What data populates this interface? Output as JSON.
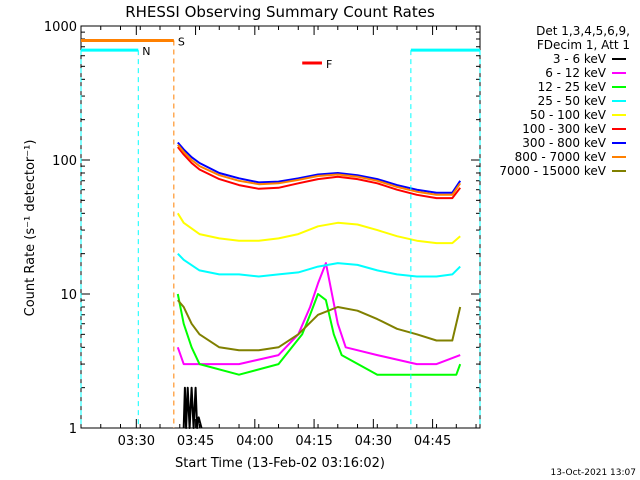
{
  "chart_data": {
    "type": "line",
    "title": "RHESSI Observing Summary Count Rates",
    "ylabel": "Count Rate (s⁻¹ detector⁻¹)",
    "xlabel": "Start Time (13-Feb-02 03:16:02)",
    "x_unit": "minutes after 03:16:02",
    "x_range": [
      0,
      101
    ],
    "y_scale": "log",
    "y_range": [
      1,
      1000
    ],
    "x_ticks": [
      {
        "t": 14,
        "label": "03:30"
      },
      {
        "t": 29,
        "label": "03:45"
      },
      {
        "t": 44,
        "label": "04:00"
      },
      {
        "t": 59,
        "label": "04:15"
      },
      {
        "t": 74,
        "label": "04:30"
      },
      {
        "t": 89,
        "label": "04:45"
      }
    ],
    "y_ticks": [
      {
        "v": 1,
        "label": "1"
      },
      {
        "v": 10,
        "label": "10"
      },
      {
        "v": 100,
        "label": "100"
      },
      {
        "v": 1000,
        "label": "1000"
      }
    ],
    "legend_header": [
      "Det 1,3,4,5,6,9,",
      "FDecim 1, Att 1"
    ],
    "legend_placement": "right",
    "footer": "13-Oct-2021 13:07",
    "series": [
      {
        "name": "3 - 6 keV",
        "color": "#000000",
        "points": [
          [
            26,
            1
          ],
          [
            26.3,
            2
          ],
          [
            26.6,
            1
          ],
          [
            27,
            2
          ],
          [
            27.5,
            1
          ],
          [
            28,
            2
          ],
          [
            28.5,
            1
          ],
          [
            29,
            2
          ],
          [
            29.4,
            1
          ],
          [
            29.8,
            1.2
          ],
          [
            30.5,
            1
          ]
        ]
      },
      {
        "name": "6 - 12 keV",
        "color": "#ff00ff",
        "points": [
          [
            24.5,
            4
          ],
          [
            26,
            3
          ],
          [
            30,
            3
          ],
          [
            40,
            3
          ],
          [
            50,
            3.5
          ],
          [
            55,
            5
          ],
          [
            58,
            8
          ],
          [
            60,
            12
          ],
          [
            62,
            17
          ],
          [
            63,
            12
          ],
          [
            65,
            6
          ],
          [
            67,
            4
          ],
          [
            75,
            3.5
          ],
          [
            85,
            3
          ],
          [
            90,
            3
          ],
          [
            96,
            3.5
          ]
        ]
      },
      {
        "name": "12 - 25 keV",
        "color": "#00ff00",
        "points": [
          [
            24.5,
            10
          ],
          [
            26,
            6
          ],
          [
            28,
            4
          ],
          [
            30,
            3
          ],
          [
            40,
            2.5
          ],
          [
            50,
            3
          ],
          [
            56,
            5
          ],
          [
            58,
            7
          ],
          [
            60,
            10
          ],
          [
            62,
            9
          ],
          [
            64,
            5
          ],
          [
            66,
            3.5
          ],
          [
            75,
            2.5
          ],
          [
            85,
            2.5
          ],
          [
            95,
            2.5
          ],
          [
            96,
            3
          ]
        ]
      },
      {
        "name": "25 - 50 keV",
        "color": "#00ffff",
        "points": [
          [
            24.5,
            20
          ],
          [
            26,
            18
          ],
          [
            30,
            15
          ],
          [
            35,
            14
          ],
          [
            40,
            14
          ],
          [
            45,
            13.5
          ],
          [
            50,
            14
          ],
          [
            55,
            14.5
          ],
          [
            60,
            16
          ],
          [
            65,
            17
          ],
          [
            70,
            16.5
          ],
          [
            75,
            15
          ],
          [
            80,
            14
          ],
          [
            85,
            13.5
          ],
          [
            90,
            13.5
          ],
          [
            94,
            14
          ],
          [
            96,
            16
          ]
        ]
      },
      {
        "name": "50 - 100 keV",
        "color": "#ffff00",
        "points": [
          [
            24.5,
            40
          ],
          [
            26,
            34
          ],
          [
            30,
            28
          ],
          [
            35,
            26
          ],
          [
            40,
            25
          ],
          [
            45,
            25
          ],
          [
            50,
            26
          ],
          [
            55,
            28
          ],
          [
            60,
            32
          ],
          [
            65,
            34
          ],
          [
            70,
            33
          ],
          [
            75,
            30
          ],
          [
            80,
            27
          ],
          [
            85,
            25
          ],
          [
            90,
            24
          ],
          [
            94,
            24
          ],
          [
            96,
            27
          ]
        ]
      },
      {
        "name": "100 - 300 keV",
        "color": "#ff0000",
        "points": [
          [
            24.5,
            125
          ],
          [
            26,
            110
          ],
          [
            28,
            95
          ],
          [
            30,
            85
          ],
          [
            35,
            72
          ],
          [
            40,
            65
          ],
          [
            45,
            61
          ],
          [
            50,
            62
          ],
          [
            55,
            67
          ],
          [
            60,
            72
          ],
          [
            65,
            75
          ],
          [
            70,
            72
          ],
          [
            75,
            67
          ],
          [
            80,
            60
          ],
          [
            85,
            55
          ],
          [
            90,
            52
          ],
          [
            94,
            52
          ],
          [
            96,
            62
          ]
        ]
      },
      {
        "name": "300 - 800 keV",
        "color": "#0000ff",
        "points": [
          [
            24.5,
            135
          ],
          [
            26,
            120
          ],
          [
            28,
            105
          ],
          [
            30,
            95
          ],
          [
            35,
            80
          ],
          [
            40,
            73
          ],
          [
            45,
            68
          ],
          [
            50,
            69
          ],
          [
            55,
            73
          ],
          [
            60,
            78
          ],
          [
            65,
            80
          ],
          [
            70,
            77
          ],
          [
            75,
            72
          ],
          [
            80,
            65
          ],
          [
            85,
            60
          ],
          [
            90,
            57
          ],
          [
            94,
            57
          ],
          [
            96,
            70
          ]
        ]
      },
      {
        "name": "800 - 7000 keV",
        "color": "#ff8000",
        "points": [
          [
            24.5,
            130
          ],
          [
            26,
            115
          ],
          [
            28,
            100
          ],
          [
            30,
            90
          ],
          [
            35,
            77
          ],
          [
            40,
            70
          ],
          [
            45,
            66
          ],
          [
            50,
            67
          ],
          [
            55,
            71
          ],
          [
            60,
            76
          ],
          [
            65,
            78
          ],
          [
            70,
            75
          ],
          [
            75,
            70
          ],
          [
            80,
            63
          ],
          [
            85,
            58
          ],
          [
            90,
            55
          ],
          [
            94,
            55
          ],
          [
            96,
            67
          ]
        ]
      },
      {
        "name": "7000 - 15000 keV",
        "color": "#808000",
        "points": [
          [
            24.5,
            9
          ],
          [
            26,
            8
          ],
          [
            28,
            6
          ],
          [
            30,
            5
          ],
          [
            35,
            4
          ],
          [
            40,
            3.8
          ],
          [
            45,
            3.8
          ],
          [
            50,
            4
          ],
          [
            55,
            5
          ],
          [
            60,
            7
          ],
          [
            65,
            8
          ],
          [
            70,
            7.5
          ],
          [
            75,
            6.5
          ],
          [
            80,
            5.5
          ],
          [
            85,
            5
          ],
          [
            90,
            4.5
          ],
          [
            94,
            4.5
          ],
          [
            96,
            8
          ]
        ]
      }
    ],
    "annotations": [
      {
        "label": "N",
        "color": "#00ffff",
        "kind": "flag",
        "segments": [
          [
            0,
            14.5
          ],
          [
            83.5,
            101
          ]
        ],
        "level": 660,
        "end_markers": [
          0,
          14.5,
          83.5,
          101
        ]
      },
      {
        "label": "S",
        "color": "#ff8000",
        "kind": "flag",
        "segments": [
          [
            0,
            23.5
          ]
        ],
        "level": 780,
        "end_markers": [
          23.5
        ]
      },
      {
        "label": "F",
        "color": "#ff0000",
        "kind": "flag",
        "segments": [
          [
            56,
            61
          ]
        ],
        "level": 530
      }
    ]
  }
}
